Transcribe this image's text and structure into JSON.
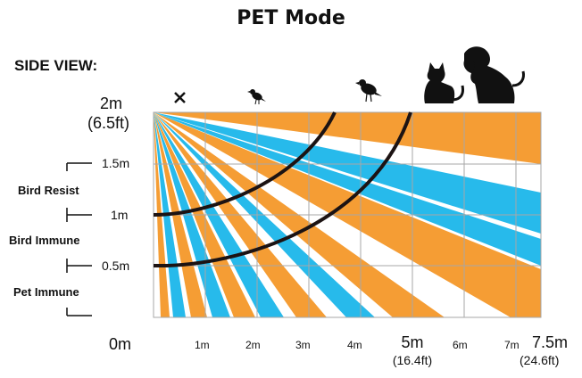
{
  "title": "PET Mode",
  "side_view_label": "SIDE VIEW:",
  "height_labels": {
    "top": "2m",
    "top_ft": "(6.5ft)",
    "h15": "1.5m",
    "h1": "1m",
    "h05": "0.5m",
    "zero": "0m"
  },
  "zones": {
    "bird_resist": "Bird Resist",
    "bird_immune": "Bird Immune",
    "pet_immune": "Pet Immune"
  },
  "distance_labels": {
    "d1": "1m",
    "d2": "2m",
    "d3": "3m",
    "d4": "4m",
    "d5": "5m",
    "d5_ft": "(16.4ft)",
    "d6": "6m",
    "d7": "7m",
    "d75": "7.5m",
    "d75_ft": "(24.6ft)"
  },
  "markers": {
    "x_mark": "X"
  },
  "icons": [
    "bird-small-icon",
    "bird-large-icon",
    "cat-icon",
    "dog-icon"
  ],
  "colors": {
    "orange": "#f59d34",
    "blue": "#27baeb",
    "grid": "#a7a7a7",
    "arc": "#1c1313"
  }
}
